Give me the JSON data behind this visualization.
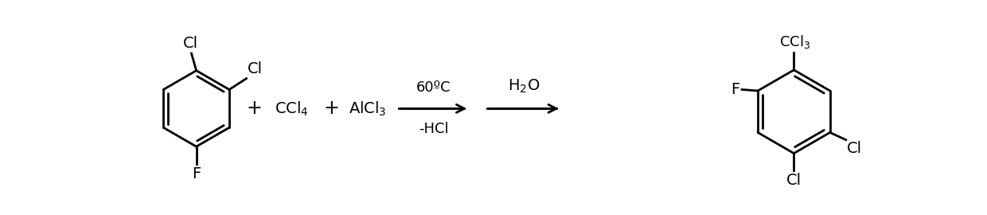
{
  "background_color": "#ffffff",
  "figsize": [
    12.4,
    2.7
  ],
  "dpi": 100,
  "text_color": "#000000",
  "reagent1": "CCl$_4$",
  "reagent2": "AlCl$_3$",
  "condition1_above": "60ºC",
  "condition1_below": "-HCl",
  "condition2": "H$_2$O",
  "product_group": "CCl$_3$",
  "product_F": "F",
  "product_Cl_right": "Cl",
  "product_Cl_bottom": "Cl",
  "reactant_Cl_top": "Cl",
  "reactant_Cl_right": "Cl",
  "reactant_F": "F",
  "font_size": 13,
  "lw": 2.0
}
